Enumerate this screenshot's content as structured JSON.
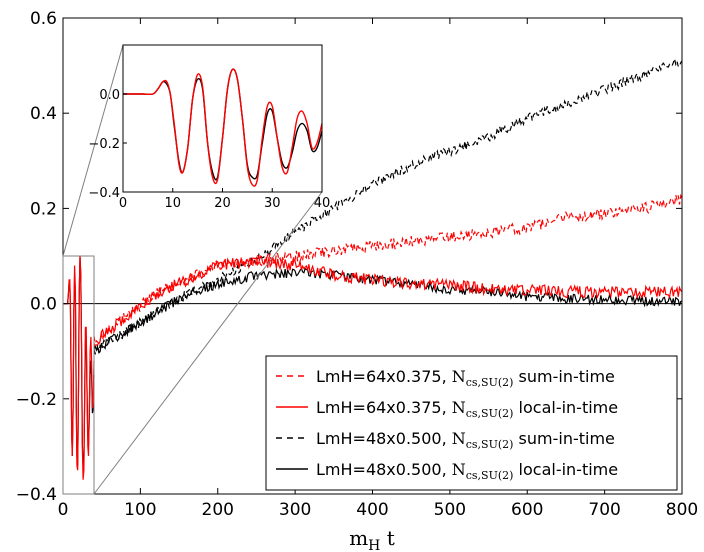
{
  "chart_data": {
    "type": "line",
    "xlabel": "m_H t",
    "xlim": [
      0,
      800
    ],
    "ylim": [
      -0.4,
      0.6
    ],
    "xticks": [
      "0",
      "100",
      "200",
      "300",
      "400",
      "500",
      "600",
      "700",
      "800"
    ],
    "yticks": [
      "−0.4",
      "−0.2",
      "0.0",
      "0.2",
      "0.4",
      "0.6"
    ],
    "legend_position": "lower-right",
    "series": [
      {
        "name": "LmH=64x0.375, Ncs,SU(2) sum-in-time",
        "color": "#ff0000",
        "style": "dashed",
        "points": [
          [
            40,
            -0.08
          ],
          [
            80,
            -0.03
          ],
          [
            120,
            0.02
          ],
          [
            160,
            0.05
          ],
          [
            200,
            0.08
          ],
          [
            250,
            0.09
          ],
          [
            300,
            0.1
          ],
          [
            350,
            0.11
          ],
          [
            400,
            0.12
          ],
          [
            450,
            0.13
          ],
          [
            500,
            0.14
          ],
          [
            550,
            0.15
          ],
          [
            600,
            0.16
          ],
          [
            650,
            0.18
          ],
          [
            700,
            0.19
          ],
          [
            750,
            0.2
          ],
          [
            800,
            0.22
          ]
        ]
      },
      {
        "name": "LmH=64x0.375, Ncs,SU(2) local-in-time",
        "color": "#ff0000",
        "style": "solid",
        "points": [
          [
            40,
            -0.08
          ],
          [
            80,
            -0.03
          ],
          [
            120,
            0.02
          ],
          [
            160,
            0.05
          ],
          [
            200,
            0.08
          ],
          [
            250,
            0.09
          ],
          [
            300,
            0.08
          ],
          [
            350,
            0.06
          ],
          [
            400,
            0.05
          ],
          [
            450,
            0.04
          ],
          [
            500,
            0.04
          ],
          [
            550,
            0.03
          ],
          [
            600,
            0.03
          ],
          [
            650,
            0.025
          ],
          [
            700,
            0.025
          ],
          [
            750,
            0.025
          ],
          [
            800,
            0.025
          ]
        ]
      },
      {
        "name": "LmH=48x0.500, Ncs,SU(2) sum-in-time",
        "color": "#000000",
        "style": "dashed",
        "points": [
          [
            40,
            -0.1
          ],
          [
            80,
            -0.06
          ],
          [
            120,
            -0.02
          ],
          [
            160,
            0.02
          ],
          [
            200,
            0.05
          ],
          [
            250,
            0.09
          ],
          [
            300,
            0.15
          ],
          [
            350,
            0.2
          ],
          [
            400,
            0.25
          ],
          [
            450,
            0.29
          ],
          [
            500,
            0.32
          ],
          [
            550,
            0.35
          ],
          [
            600,
            0.39
          ],
          [
            650,
            0.42
          ],
          [
            700,
            0.45
          ],
          [
            750,
            0.48
          ],
          [
            800,
            0.51
          ]
        ]
      },
      {
        "name": "LmH=48x0.500, Ncs,SU(2) local-in-time",
        "color": "#000000",
        "style": "solid",
        "points": [
          [
            40,
            -0.1
          ],
          [
            80,
            -0.06
          ],
          [
            120,
            -0.02
          ],
          [
            160,
            0.02
          ],
          [
            200,
            0.04
          ],
          [
            250,
            0.06
          ],
          [
            300,
            0.065
          ],
          [
            350,
            0.06
          ],
          [
            400,
            0.05
          ],
          [
            450,
            0.04
          ],
          [
            500,
            0.03
          ],
          [
            550,
            0.025
          ],
          [
            600,
            0.015
          ],
          [
            650,
            0.01
          ],
          [
            700,
            0.01
          ],
          [
            750,
            0.005
          ],
          [
            800,
            0.005
          ]
        ]
      }
    ],
    "inset": {
      "xlim": [
        0,
        40
      ],
      "ylim": [
        -0.4,
        0.2
      ],
      "xticks": [
        "0",
        "10",
        "20",
        "30",
        "40"
      ],
      "yticks": [
        "0.0",
        "−0.2",
        "−0.4"
      ],
      "red_points": [
        [
          0,
          0.0
        ],
        [
          2,
          0.0
        ],
        [
          4,
          0.0
        ],
        [
          6,
          0.0
        ],
        [
          7,
          0.02
        ],
        [
          8,
          0.05
        ],
        [
          8.8,
          0.05
        ],
        [
          9.5,
          0.0
        ],
        [
          10.3,
          -0.12
        ],
        [
          11.2,
          -0.28
        ],
        [
          12,
          -0.32
        ],
        [
          13,
          -0.22
        ],
        [
          14,
          -0.02
        ],
        [
          15,
          0.08
        ],
        [
          16,
          0.03
        ],
        [
          17,
          -0.2
        ],
        [
          18,
          -0.34
        ],
        [
          19,
          -0.35
        ],
        [
          20,
          -0.18
        ],
        [
          21,
          0.02
        ],
        [
          22,
          0.1
        ],
        [
          23,
          0.06
        ],
        [
          24,
          -0.1
        ],
        [
          25,
          -0.3
        ],
        [
          26,
          -0.37
        ],
        [
          27,
          -0.35
        ],
        [
          28,
          -0.18
        ],
        [
          29,
          -0.05
        ],
        [
          30,
          -0.05
        ],
        [
          31,
          -0.18
        ],
        [
          32,
          -0.3
        ],
        [
          33,
          -0.32
        ],
        [
          34,
          -0.22
        ],
        [
          35,
          -0.1
        ],
        [
          36,
          -0.07
        ],
        [
          37,
          -0.12
        ],
        [
          38,
          -0.22
        ],
        [
          39,
          -0.2
        ],
        [
          40,
          -0.12
        ]
      ],
      "black_points": [
        [
          0,
          0.0
        ],
        [
          2,
          0.0
        ],
        [
          4,
          0.0
        ],
        [
          6,
          0.0
        ],
        [
          7,
          0.02
        ],
        [
          8,
          0.05
        ],
        [
          8.8,
          0.04
        ],
        [
          9.5,
          0.0
        ],
        [
          10.3,
          -0.13
        ],
        [
          11.2,
          -0.27
        ],
        [
          12,
          -0.32
        ],
        [
          13,
          -0.22
        ],
        [
          14,
          -0.02
        ],
        [
          15,
          0.06
        ],
        [
          16,
          0.02
        ],
        [
          17,
          -0.2
        ],
        [
          18,
          -0.32
        ],
        [
          19,
          -0.34
        ],
        [
          20,
          -0.18
        ],
        [
          21,
          0.02
        ],
        [
          22,
          0.1
        ],
        [
          23,
          0.06
        ],
        [
          24,
          -0.1
        ],
        [
          25,
          -0.29
        ],
        [
          26,
          -0.34
        ],
        [
          27,
          -0.33
        ],
        [
          28,
          -0.2
        ],
        [
          29,
          -0.08
        ],
        [
          30,
          -0.07
        ],
        [
          31,
          -0.18
        ],
        [
          32,
          -0.28
        ],
        [
          33,
          -0.3
        ],
        [
          34,
          -0.24
        ],
        [
          35,
          -0.15
        ],
        [
          36,
          -0.12
        ],
        [
          37,
          -0.15
        ],
        [
          38,
          -0.23
        ],
        [
          39,
          -0.22
        ],
        [
          40,
          -0.15
        ]
      ]
    }
  }
}
